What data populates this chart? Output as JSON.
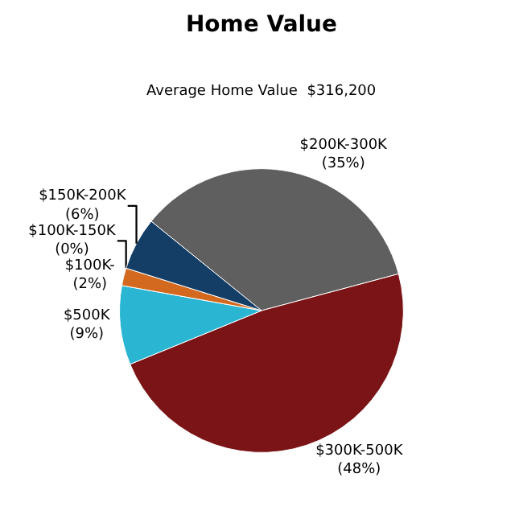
{
  "chart_data": {
    "type": "pie",
    "title": "Home Value",
    "subtitle": "Average Home Value  $316,200",
    "categories": [
      "$200K-300K",
      "$300K-500K",
      "$500K",
      "$100K-",
      "$100K-150K",
      "$150K-200K"
    ],
    "values": [
      35,
      48,
      9,
      2,
      0,
      6
    ],
    "value_labels": [
      "(35%)",
      "(48%)",
      "(9%)",
      "(2%)",
      "(0%)",
      "(6%)"
    ],
    "colors": [
      "#5f5f5f",
      "#7b1416",
      "#2ab6d3",
      "#d2691e",
      "#8a8a8a",
      "#143e66"
    ],
    "legend": false
  }
}
